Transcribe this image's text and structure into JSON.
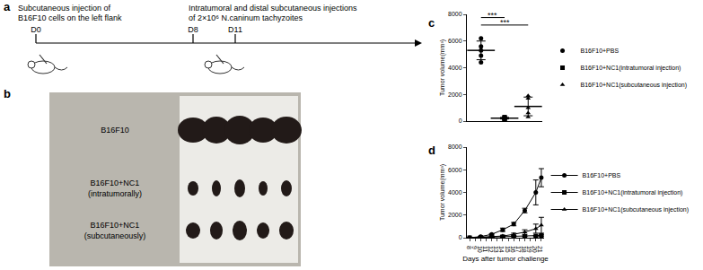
{
  "panel_a": {
    "label": "a",
    "days": [
      "D0",
      "D8",
      "D11"
    ],
    "notes": [
      {
        "at": "D0",
        "lines": [
          "Subcutaneous injection of",
          "B16F10 cells on the left flank"
        ]
      },
      {
        "at": "D8",
        "lines": [
          "Intratumoral and distal subcutaneous injections",
          "of 2×10⁶ N.caninum tachyzoites"
        ]
      }
    ]
  },
  "panel_b": {
    "label": "b",
    "rows": [
      [
        "B16F10"
      ],
      [
        "B16F10+NC1",
        "(intratumorally)"
      ],
      [
        "B16F10+NC1",
        "(subcutaneously)"
      ]
    ]
  },
  "chart_data": [
    {
      "type": "scatter",
      "label": "c",
      "ylabel": "Tumor volume(mm³)",
      "ylim": [
        0,
        8000
      ],
      "yticks": [
        0,
        2000,
        4000,
        6000,
        8000
      ],
      "tick_labels": "y",
      "grid": false,
      "legend": "right",
      "series": [
        {
          "name": "B16F10+PBS",
          "marker": "circle",
          "color": "#000000",
          "values": [
            6200,
            5600,
            5300,
            4900,
            4400
          ],
          "mean": 5300,
          "sd": 700
        },
        {
          "name": "B16F10+NC1(intratumoral injection)",
          "marker": "square",
          "color": "#000000",
          "values": [
            250,
            150,
            200,
            300,
            180
          ],
          "mean": 220,
          "sd": 60
        },
        {
          "name": "B16F10+NC1(subcutaneous injection)",
          "marker": "triangle",
          "color": "#000000",
          "values": [
            1900,
            1700,
            1000,
            600,
            300
          ],
          "mean": 1100,
          "sd": 700
        }
      ],
      "comparisons": [
        {
          "from": 0,
          "to": 1,
          "label": "***"
        },
        {
          "from": 0,
          "to": 2,
          "label": "***"
        }
      ]
    },
    {
      "type": "line",
      "label": "d",
      "xlabel": "Days after tumor challenge",
      "ylabel": "Tumor volume(mm³)",
      "x": [
        8,
        10,
        12,
        14,
        16,
        18,
        20,
        21
      ],
      "xlim": [
        7.5,
        21.5
      ],
      "xticks": [
        8,
        9,
        10,
        11,
        12,
        13,
        14,
        15,
        16,
        17,
        18,
        19,
        20,
        21
      ],
      "ylim": [
        0,
        8000
      ],
      "yticks": [
        0,
        2000,
        4000,
        6000,
        8000
      ],
      "grid": false,
      "legend": "right",
      "series": [
        {
          "name": "B16F10+PBS",
          "marker": "circle",
          "line_style": "solid",
          "color": "#000000",
          "values": [
            0,
            100,
            300,
            700,
            1200,
            2400,
            4000,
            5300
          ],
          "errors": [
            0,
            20,
            60,
            150,
            150,
            200,
            1100,
            800
          ]
        },
        {
          "name": "B16F10+NC1(intratumoral injection)",
          "marker": "square",
          "line_style": "solid",
          "color": "#000000",
          "values": [
            0,
            30,
            50,
            80,
            100,
            120,
            150,
            200
          ],
          "errors": [
            0,
            10,
            10,
            20,
            30,
            30,
            50,
            60
          ]
        },
        {
          "name": "B16F10+NC1(subcutaneous injection)",
          "marker": "triangle",
          "line_style": "solid",
          "color": "#000000",
          "values": [
            0,
            50,
            100,
            150,
            300,
            500,
            800,
            1100
          ],
          "errors": [
            0,
            20,
            40,
            60,
            100,
            200,
            400,
            700
          ]
        }
      ]
    }
  ]
}
